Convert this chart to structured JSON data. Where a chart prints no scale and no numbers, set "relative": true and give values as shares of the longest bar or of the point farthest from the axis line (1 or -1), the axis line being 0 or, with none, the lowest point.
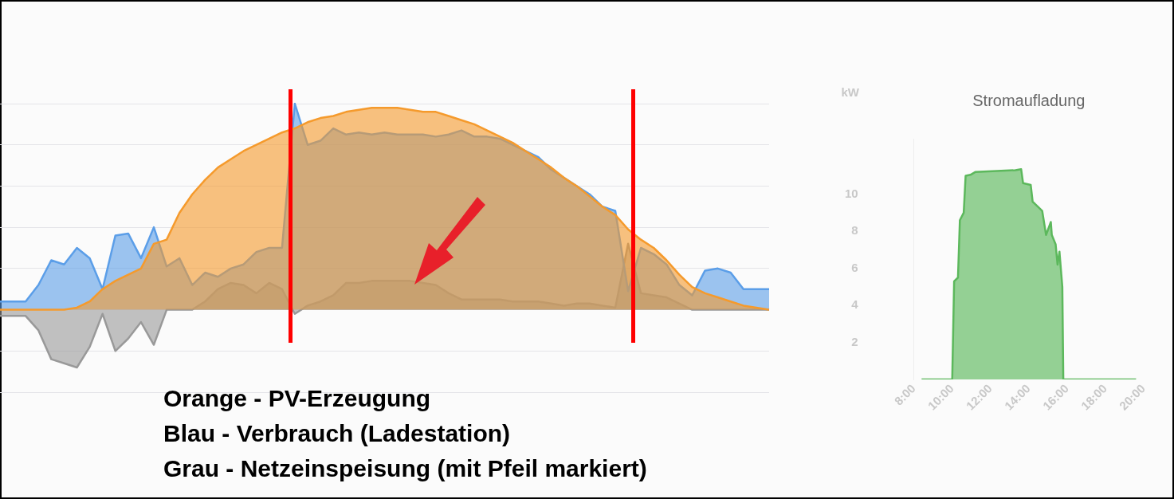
{
  "chart_data": [
    {
      "type": "area",
      "relative": true,
      "grid": "y",
      "marker": "none",
      "categories": [
        null,
        null,
        null,
        null,
        null,
        null,
        null,
        null,
        null,
        null,
        null,
        null,
        null,
        null,
        null,
        null,
        null,
        null,
        null,
        null,
        null,
        null,
        null,
        null,
        null,
        null,
        null,
        null,
        null,
        null,
        null,
        null,
        null,
        null,
        null,
        null,
        null,
        null,
        null,
        null,
        null,
        null,
        null,
        null,
        null,
        null,
        null,
        null,
        null,
        null,
        null,
        null,
        null,
        null,
        null,
        null,
        null,
        null,
        null,
        null,
        null
      ],
      "series": [
        {
          "color": "#f59a2c",
          "values": [
            0,
            0,
            0,
            0,
            0,
            0,
            0.01,
            0.04,
            0.1,
            0.14,
            0.17,
            0.2,
            0.32,
            0.34,
            0.47,
            0.56,
            0.63,
            0.69,
            0.73,
            0.77,
            0.8,
            0.83,
            0.86,
            0.88,
            0.91,
            0.93,
            0.94,
            0.96,
            0.97,
            0.98,
            0.98,
            0.98,
            0.97,
            0.96,
            0.96,
            0.94,
            0.92,
            0.9,
            0.87,
            0.84,
            0.81,
            0.77,
            0.73,
            0.69,
            0.64,
            0.6,
            0.55,
            0.5,
            0.46,
            0.39,
            0.34,
            0.3,
            0.24,
            0.17,
            0.11,
            0.08,
            0.06,
            0.04,
            0.02,
            0.01,
            0
          ]
        },
        {
          "color": "#5b9ee8",
          "values": [
            0.04,
            0.04,
            0.04,
            0.12,
            0.24,
            0.22,
            0.3,
            0.25,
            0.1,
            0.36,
            0.37,
            0.25,
            0.4,
            0.21,
            0.25,
            0.12,
            0.18,
            0.16,
            0.2,
            0.22,
            0.28,
            0.3,
            0.3,
            1,
            0.8,
            0.82,
            0.88,
            0.85,
            0.86,
            0.85,
            0.86,
            0.85,
            0.85,
            0.85,
            0.84,
            0.85,
            0.87,
            0.84,
            0.84,
            0.83,
            0.8,
            0.77,
            0.74,
            0.68,
            0.64,
            0.6,
            0.56,
            0.5,
            0.48,
            0.09,
            0.3,
            0.27,
            0.22,
            0.12,
            0.07,
            0.19,
            0.2,
            0.18,
            0.1,
            0.1,
            0.1
          ]
        },
        {
          "color": "#999999",
          "values": [
            -0.03,
            -0.03,
            -0.03,
            -0.1,
            -0.24,
            -0.26,
            -0.28,
            -0.18,
            -0.02,
            -0.2,
            -0.14,
            -0.06,
            -0.17,
            0,
            0,
            0,
            0.04,
            0.1,
            0.13,
            0.12,
            0.08,
            0.13,
            0.1,
            -0.02,
            0.02,
            0.04,
            0.07,
            0.13,
            0.13,
            0.14,
            0.14,
            0.14,
            0.14,
            0.13,
            0.12,
            0.08,
            0.05,
            0.05,
            0.05,
            0.05,
            0.04,
            0.04,
            0.04,
            0.03,
            0.02,
            0.03,
            0.03,
            0.02,
            0.01,
            0.32,
            0.08,
            0.07,
            0.06,
            0.03,
            0,
            0,
            0,
            0,
            0,
            0,
            0
          ]
        }
      ],
      "annotations": [
        "Orange - PV-Erzeugung",
        "Blau - Verbrauch (Ladestation)",
        "Grau - Netzeinspeisung (mit Pfeil markiert)"
      ]
    },
    {
      "type": "area",
      "title": "Stromaufladung",
      "ylabel": "kW",
      "grid": false,
      "marker": "none",
      "xlim": [
        8,
        20
      ],
      "ylim": [
        0,
        13
      ],
      "xticks": [
        {
          "value": 8,
          "label": "8:00"
        },
        {
          "value": 10,
          "label": "10:00"
        },
        {
          "value": 12,
          "label": "12:00"
        },
        {
          "value": 14,
          "label": "14:00"
        },
        {
          "value": 16,
          "label": "16:00"
        },
        {
          "value": 18,
          "label": "18:00"
        },
        {
          "value": 20,
          "label": "20:00"
        }
      ],
      "yticks": [
        2,
        4,
        6,
        8,
        10
      ],
      "series": [
        {
          "color": "#5cb85c",
          "x": [
            8.4,
            10.0,
            10.1,
            10.3,
            10.4,
            10.6,
            10.7,
            10.95,
            11.2,
            12.1,
            13.3,
            13.6,
            13.7,
            14.1,
            14.2,
            14.4,
            14.5,
            14.7,
            14.9,
            15.15,
            15.2,
            15.4,
            15.5,
            15.6,
            15.75,
            15.8,
            19.6
          ],
          "values": [
            0,
            0,
            5.3,
            5.5,
            8.6,
            9,
            11,
            11.05,
            11.2,
            11.25,
            11.3,
            11.35,
            10.6,
            10.5,
            9.6,
            9.4,
            9.3,
            9.1,
            7.8,
            8.5,
            7.8,
            7.3,
            6.2,
            6.9,
            5,
            0,
            0
          ]
        }
      ]
    }
  ]
}
